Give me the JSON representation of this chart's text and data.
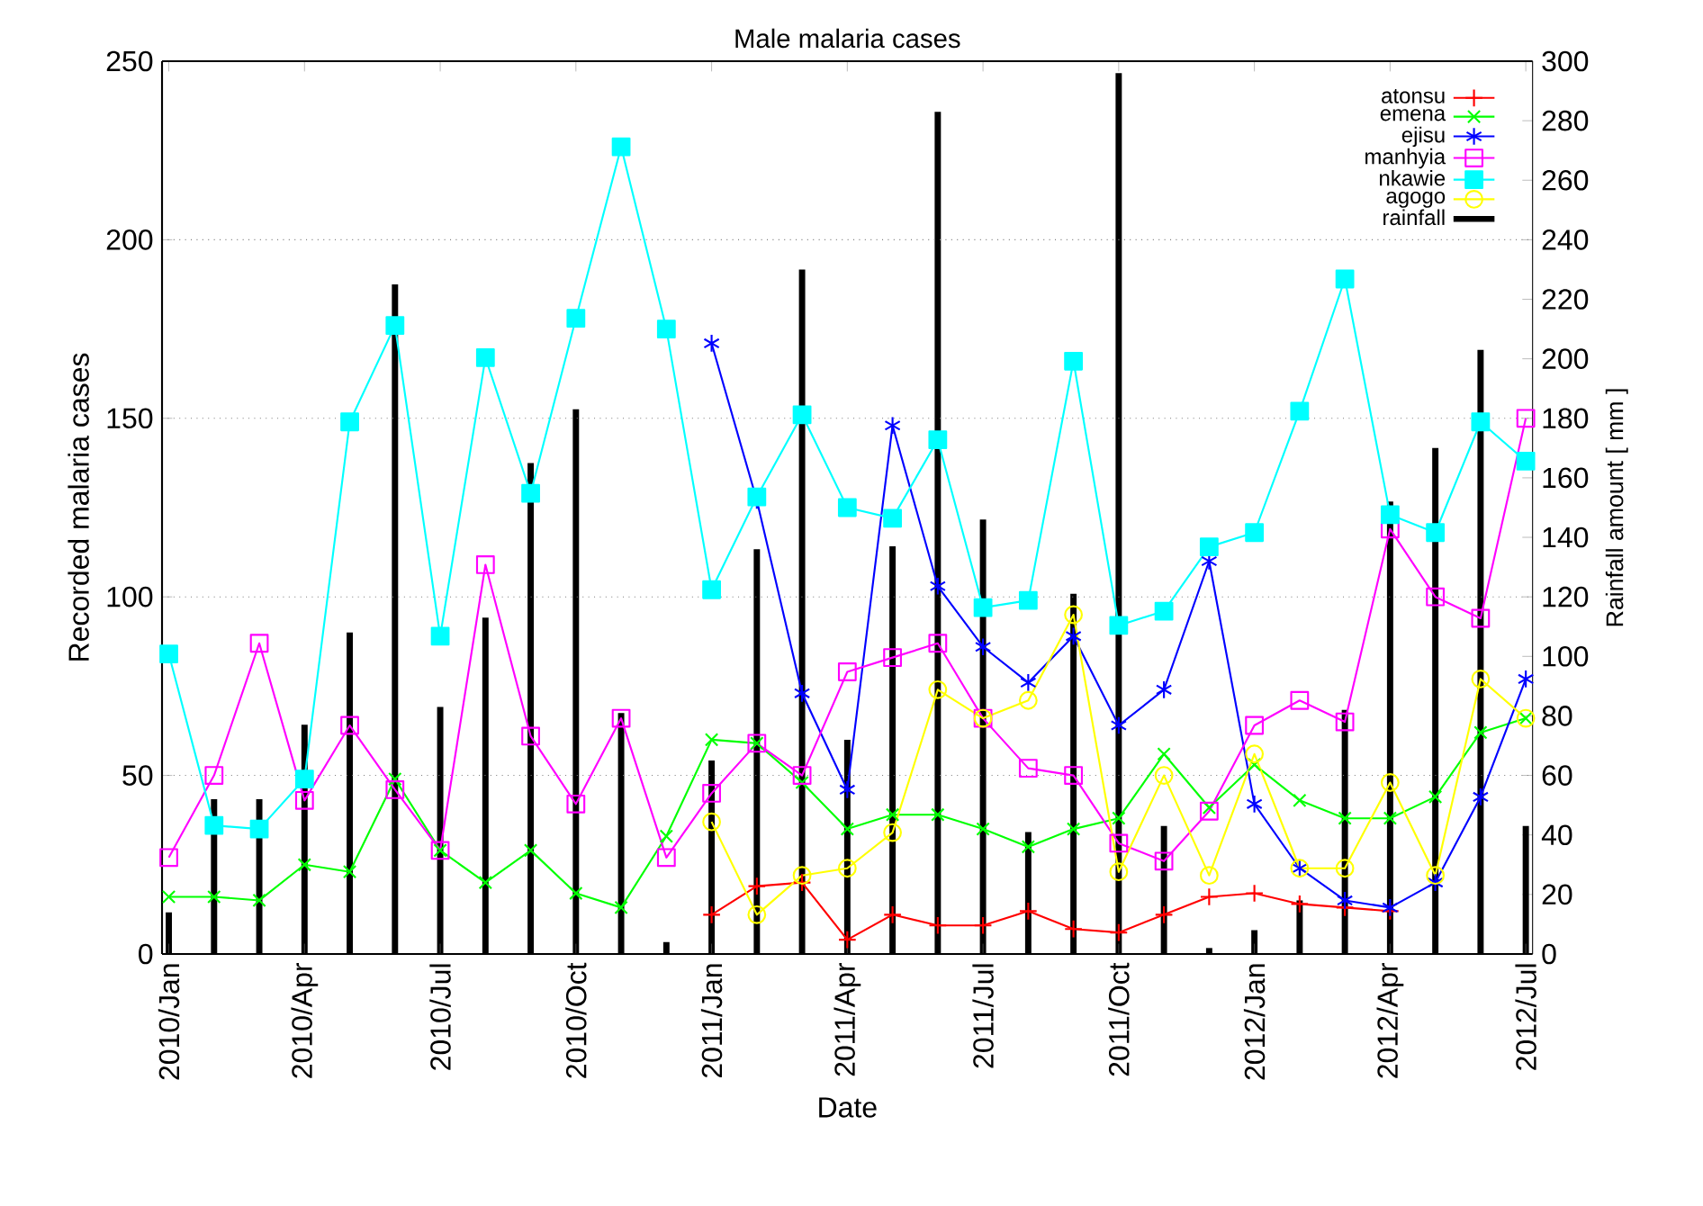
{
  "chart_data": {
    "type": "line",
    "title": "Male malaria cases",
    "xlabel": "Date",
    "ylabel": "Recorded malaria cases",
    "y2label": "Rainfall amount [ mm ]",
    "categories": [
      "2010/Jan",
      null,
      null,
      "2010/Apr",
      null,
      null,
      "2010/Jul",
      null,
      null,
      "2010/Oct",
      null,
      null,
      "2011/Jan",
      null,
      null,
      "2011/Apr",
      null,
      null,
      "2011/Jul",
      null,
      null,
      "2011/Oct",
      null,
      null,
      "2012/Jan",
      null,
      null,
      "2012/Apr",
      null,
      null,
      "2012/Jul"
    ],
    "ylim": [
      0,
      250
    ],
    "yticks": [
      0,
      50,
      100,
      150,
      200,
      250
    ],
    "y2lim": [
      0,
      300
    ],
    "y2ticks": [
      0,
      20,
      40,
      60,
      80,
      100,
      120,
      140,
      160,
      180,
      200,
      220,
      240,
      260,
      280,
      300
    ],
    "grid": "y",
    "legend": "top right",
    "series": [
      {
        "name": "atonsu",
        "color": "#ff0000",
        "marker": "plus",
        "values": [
          null,
          null,
          null,
          null,
          null,
          null,
          null,
          null,
          null,
          null,
          null,
          null,
          11,
          19,
          20,
          4,
          11,
          8,
          8,
          12,
          7,
          6,
          11,
          16,
          17,
          14,
          13,
          12,
          null,
          null,
          null
        ]
      },
      {
        "name": "emena",
        "color": "#00ff00",
        "marker": "cross",
        "values": [
          16,
          16,
          15,
          25,
          23,
          49,
          29,
          20,
          29,
          17,
          13,
          33,
          60,
          59,
          48,
          35,
          39,
          39,
          35,
          30,
          35,
          38,
          56,
          41,
          53,
          43,
          38,
          38,
          44,
          62,
          66
        ]
      },
      {
        "name": "ejisu",
        "color": "#0000ff",
        "marker": "cross",
        "values": [
          null,
          null,
          null,
          null,
          null,
          null,
          null,
          null,
          null,
          null,
          null,
          null,
          171,
          127,
          73,
          46,
          148,
          103,
          86,
          76,
          89,
          64,
          74,
          110,
          42,
          24,
          15,
          13,
          20,
          44,
          77
        ]
      },
      {
        "name": "manhyia",
        "color": "#ff00ff",
        "marker": "square",
        "values": [
          27,
          50,
          87,
          43,
          64,
          46,
          29,
          109,
          61,
          42,
          66,
          27,
          45,
          59,
          50,
          79,
          83,
          87,
          66,
          52,
          50,
          31,
          26,
          40,
          64,
          71,
          65,
          119,
          100,
          94,
          150
        ]
      },
      {
        "name": "nkawie",
        "color": "#00ffff",
        "marker": "square",
        "values": [
          84,
          36,
          35,
          49,
          149,
          176,
          89,
          167,
          129,
          178,
          226,
          175,
          102,
          128,
          151,
          125,
          122,
          144,
          97,
          99,
          166,
          92,
          96,
          114,
          118,
          152,
          189,
          123,
          118,
          149,
          138
        ]
      },
      {
        "name": "agogo",
        "color": "#ffff00",
        "marker": "circle",
        "values": [
          null,
          null,
          null,
          null,
          null,
          null,
          null,
          null,
          null,
          null,
          null,
          null,
          37,
          11,
          22,
          24,
          34,
          74,
          66,
          71,
          95,
          23,
          50,
          22,
          56,
          24,
          24,
          48,
          22,
          77,
          66
        ]
      },
      {
        "name": "rainfall",
        "type": "bar",
        "axis": "y2",
        "color": "#000000",
        "values": [
          14,
          52,
          52,
          77,
          108,
          225,
          83,
          113,
          165,
          183,
          81,
          4,
          65,
          136,
          230,
          72,
          137,
          283,
          146,
          41,
          121,
          296,
          43,
          2,
          8,
          18,
          82,
          152,
          170,
          203,
          43
        ]
      }
    ]
  }
}
